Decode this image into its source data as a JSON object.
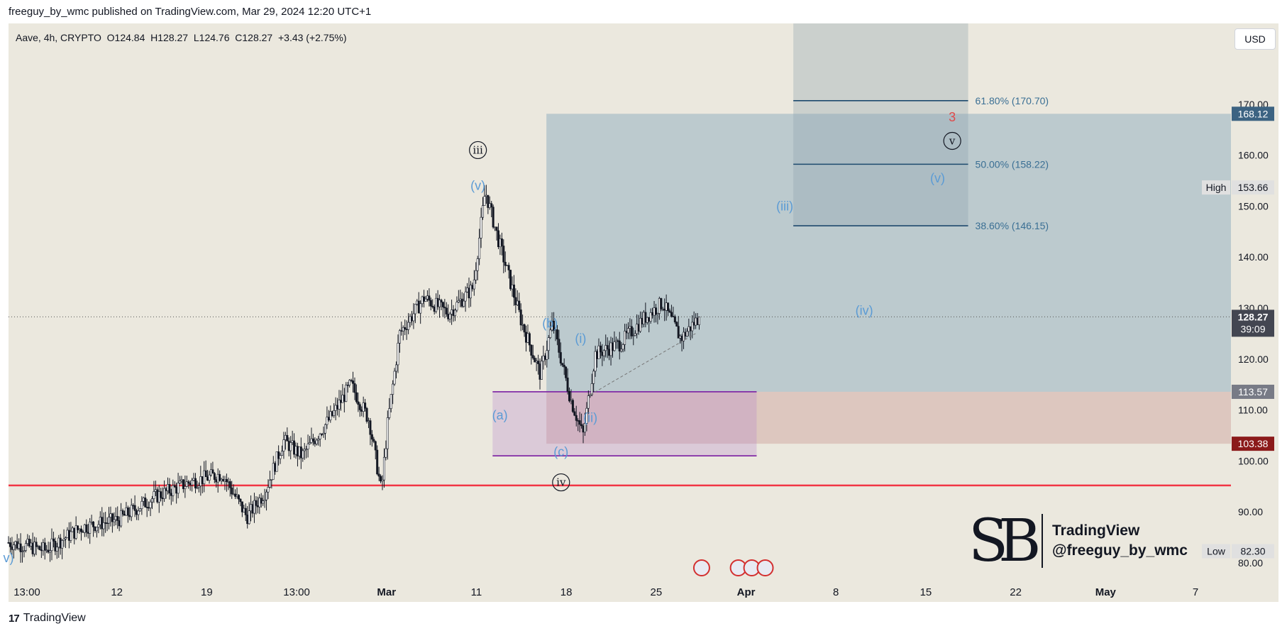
{
  "header": {
    "publisher_line": "freeguy_by_wmc published on TradingView.com, Mar 29, 2024 12:20 UTC+1"
  },
  "legend": {
    "symbol": "Aave, 4h, CRYPTO",
    "open": "O124.84",
    "high": "H128.27",
    "low": "L124.76",
    "close": "C128.27",
    "change": "+3.43 (+2.75%)"
  },
  "currency_button": "USD",
  "footer": {
    "logo": "17",
    "brand": "TradingView"
  },
  "watermark": {
    "monogram": "SB",
    "line1": "TradingView",
    "line2": "@freeguy_by_wmc"
  },
  "colors": {
    "background": "#ebe8de",
    "support_line": "#f23645",
    "box_purple": "#7b1fa2",
    "fib_line": "#1e4a6e",
    "wave_label_blue": "#5b9bd5",
    "target_red": "#e04a4a",
    "current_price_bg": "#434651",
    "zone_top_bg": "#3c6382",
    "zone_bottom_bg": "#8b1a1a"
  },
  "chart_data": {
    "type": "candlestick",
    "ylim": [
      80,
      175
    ],
    "y_ticks": [
      "170.00",
      "160.00",
      "150.00",
      "140.00",
      "130.00",
      "120.00",
      "110.00",
      "100.00",
      "90.00",
      "80.00"
    ],
    "x_ticks": [
      "13:00",
      "12",
      "19",
      "13:00",
      "Mar",
      "11",
      "18",
      "25",
      "Apr",
      "8",
      "15",
      "22",
      "May",
      "7"
    ],
    "price_path": [
      {
        "t": 0,
        "p": 84
      },
      {
        "t": 0.03,
        "p": 82.5
      },
      {
        "t": 0.06,
        "p": 87
      },
      {
        "t": 0.09,
        "p": 88.5
      },
      {
        "t": 0.12,
        "p": 93
      },
      {
        "t": 0.15,
        "p": 96
      },
      {
        "t": 0.175,
        "p": 97.5
      },
      {
        "t": 0.195,
        "p": 89
      },
      {
        "t": 0.21,
        "p": 94
      },
      {
        "t": 0.225,
        "p": 104
      },
      {
        "t": 0.24,
        "p": 101
      },
      {
        "t": 0.265,
        "p": 109
      },
      {
        "t": 0.28,
        "p": 115
      },
      {
        "t": 0.295,
        "p": 108
      },
      {
        "t": 0.305,
        "p": 94
      },
      {
        "t": 0.31,
        "p": 107
      },
      {
        "t": 0.32,
        "p": 125
      },
      {
        "t": 0.34,
        "p": 132
      },
      {
        "t": 0.36,
        "p": 129
      },
      {
        "t": 0.38,
        "p": 134
      },
      {
        "t": 0.39,
        "p": 153
      },
      {
        "t": 0.4,
        "p": 144
      },
      {
        "t": 0.42,
        "p": 127
      },
      {
        "t": 0.435,
        "p": 117
      },
      {
        "t": 0.445,
        "p": 127
      },
      {
        "t": 0.46,
        "p": 112
      },
      {
        "t": 0.47,
        "p": 105
      },
      {
        "t": 0.48,
        "p": 121
      },
      {
        "t": 0.5,
        "p": 123
      },
      {
        "t": 0.52,
        "p": 128
      },
      {
        "t": 0.535,
        "p": 131
      },
      {
        "t": 0.55,
        "p": 124
      },
      {
        "t": 0.565,
        "p": 128.27
      }
    ],
    "current_price": {
      "label": "128.27",
      "countdown": "39:09",
      "value": 128.27
    },
    "high": {
      "label": "High",
      "value": "153.66"
    },
    "low": {
      "label": "Low",
      "value": "82.30"
    },
    "price_markers": [
      {
        "value": "168.12",
        "level": 168.12,
        "style": "blue"
      },
      {
        "value": "113.57",
        "level": 113.57,
        "style": "gray"
      },
      {
        "value": "103.38",
        "level": 103.38,
        "style": "red"
      }
    ],
    "support_line": 95.2,
    "fib_levels": [
      {
        "label": "61.80% (170.70)",
        "level": 170.7
      },
      {
        "label": "50.00% (158.22)",
        "level": 158.22
      },
      {
        "label": "38.60% (146.15)",
        "level": 146.15
      }
    ],
    "wave_labels": [
      {
        "text": "iii",
        "t": 0.384,
        "p": 161,
        "style": "circle"
      },
      {
        "text": "(v)",
        "t": 0.384,
        "p": 154,
        "style": "blue"
      },
      {
        "text": "(b)",
        "t": 0.443,
        "p": 127,
        "style": "blue"
      },
      {
        "text": "(i)",
        "t": 0.468,
        "p": 124,
        "style": "blue"
      },
      {
        "text": "(a)",
        "t": 0.402,
        "p": 109,
        "style": "blue"
      },
      {
        "text": "(ii)",
        "t": 0.476,
        "p": 108.5,
        "style": "blue"
      },
      {
        "text": "(c)",
        "t": 0.452,
        "p": 101.8,
        "style": "blue"
      },
      {
        "text": "iv",
        "t": 0.452,
        "p": 95.8,
        "style": "circle"
      },
      {
        "text": "(iii)",
        "t": 0.635,
        "p": 150,
        "style": "blue"
      },
      {
        "text": "(iv)",
        "t": 0.7,
        "p": 129.5,
        "style": "blue"
      },
      {
        "text": "3",
        "t": 0.772,
        "p": 167.5,
        "style": "red"
      },
      {
        "text": "v",
        "t": 0.772,
        "p": 162.8,
        "style": "circle"
      },
      {
        "text": "(v)",
        "t": 0.76,
        "p": 155.5,
        "style": "blue"
      },
      {
        "text": "v)",
        "t": 0,
        "p": 81,
        "style": "blue"
      }
    ]
  }
}
